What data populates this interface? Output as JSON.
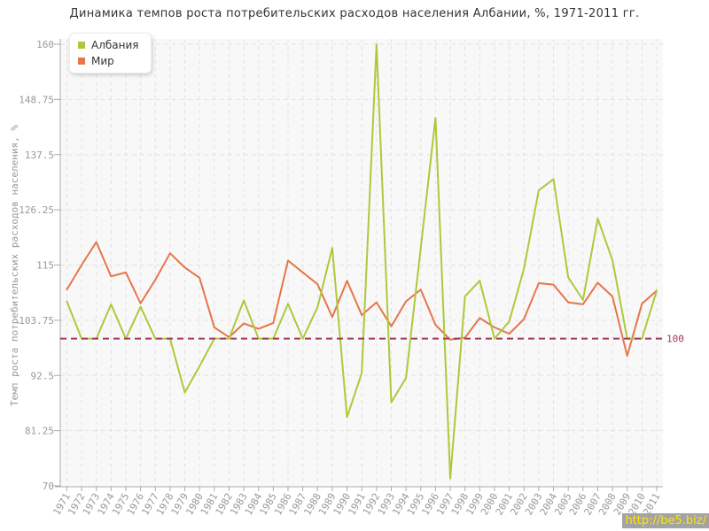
{
  "title": "Динамика темпов роста потребительских расходов населения Албании, %, 1971-2011 гг.",
  "watermark": "http://be5.biz/",
  "colors": {
    "albania_line": "#adc93b",
    "world_line": "#e5764a",
    "reference_line": "#a23b5a",
    "grid": "#e2e2e2",
    "axis": "#aaaaaa",
    "tick_text": "#999999",
    "plot_background": "#f8f8f8",
    "watermark_bg": "#a3a3a3",
    "watermark_text": "#ffe400"
  },
  "chart_data": {
    "type": "line",
    "title": "Динамика темпов роста потребительских расходов населения Албании, %, 1971-2011 гг.",
    "xlabel": "",
    "ylabel": "Темп роста потребительских расходов населения, %",
    "ylim": [
      70,
      160
    ],
    "yticks": [
      70,
      81.25,
      92.5,
      103.75,
      115,
      126.25,
      137.5,
      148.75,
      160
    ],
    "grid": true,
    "legend_position": "top-left",
    "reference_line": {
      "value": 100,
      "label": "100",
      "color": "#a23b5a",
      "style": "dashed"
    },
    "categories": [
      "1971",
      "1972",
      "1973",
      "1974",
      "1975",
      "1976",
      "1977",
      "1978",
      "1979",
      "1980",
      "1981",
      "1982",
      "1983",
      "1984",
      "1985",
      "1986",
      "1987",
      "1988",
      "1989",
      "1990",
      "1991",
      "1992",
      "1993",
      "1994",
      "1995",
      "1996",
      "1997",
      "1998",
      "1999",
      "2000",
      "2001",
      "2002",
      "2003",
      "2004",
      "2005",
      "2006",
      "2007",
      "2008",
      "2009",
      "2010",
      "2011"
    ],
    "series": [
      {
        "name": "Албания",
        "color": "#adc93b",
        "values": [
          107.6,
          100,
          100,
          107,
          100,
          106.5,
          100,
          100,
          89,
          94.4,
          100,
          100,
          107.8,
          100,
          100,
          107.1,
          100,
          106.4,
          118.5,
          84,
          93,
          160,
          87,
          92,
          118.5,
          145,
          71.5,
          108.6,
          111.8,
          100,
          103.5,
          114.3,
          130.2,
          132.5,
          112.5,
          107.9,
          124.5,
          116,
          100,
          100,
          109.8
        ]
      },
      {
        "name": "Мир",
        "color": "#e5764a",
        "values": [
          110,
          115,
          119.7,
          112.7,
          113.5,
          107.2,
          112,
          117.4,
          114.5,
          112.4,
          102.3,
          100.3,
          103.1,
          102,
          103.2,
          115.9,
          113.5,
          111.1,
          104.4,
          111.8,
          104.8,
          107.4,
          102.5,
          107.6,
          110,
          102.8,
          99.8,
          100.2,
          104.2,
          102.3,
          101,
          104,
          111.3,
          111,
          107.4,
          107,
          111.4,
          108.6,
          96.5,
          107.1,
          109.8
        ]
      }
    ]
  }
}
